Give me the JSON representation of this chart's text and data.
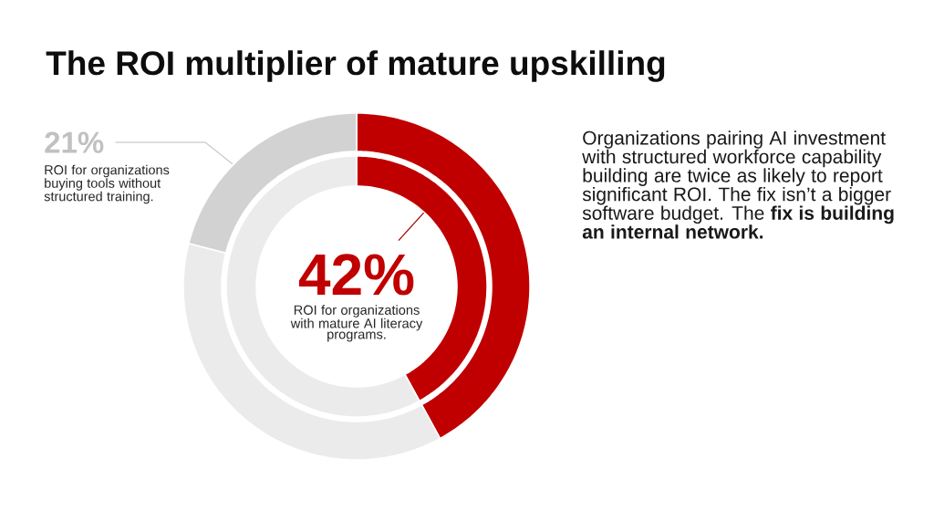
{
  "chart_data": {
    "type": "donut",
    "title": "The ROI multiplier of mature upskilling",
    "categories": [
      "ROI for organizations with mature AI literacy programs.",
      null,
      "ROI for organizations buying tools without structured training."
    ],
    "series": [
      {
        "values": [
          42,
          37,
          21
        ],
        "colors": [
          "#c00000",
          "#ebebeb",
          "#d2d2d2"
        ],
        "value_labels": [
          "42%",
          null,
          "21%"
        ]
      },
      {
        "values": [
          42,
          58,
          null
        ],
        "colors": [
          "#c00000",
          "#ebebeb",
          null
        ]
      }
    ],
    "annotations": [
      "Organizations pairing AI investment with structured workforce capability building are twice as likely to report significant ROI. The fix isn’t a bigger software budget. The **fix is building an internal network.**"
    ]
  }
}
